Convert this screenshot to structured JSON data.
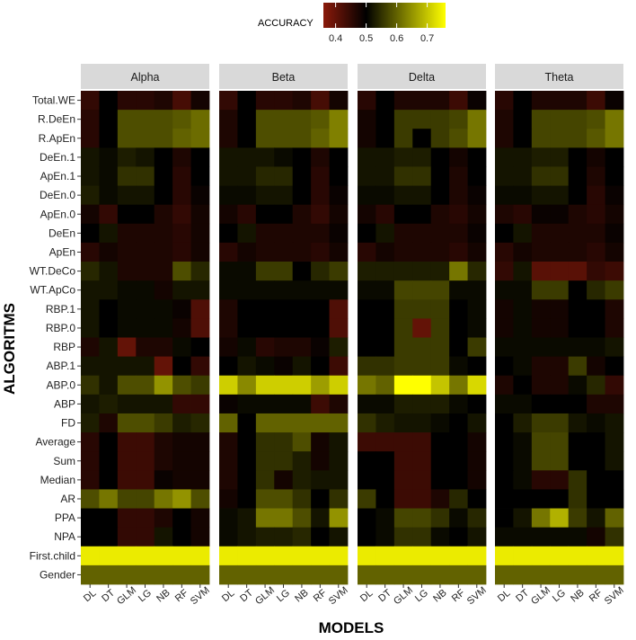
{
  "chart_data": {
    "type": "heatmap",
    "xlabel": "MODELS",
    "ylabel": "ALGORITMS",
    "legend": {
      "title": "ACCURACY",
      "placement": "top",
      "min": 0.36,
      "max": 0.76,
      "ticks": [
        "0.4",
        "0.5",
        "0.6",
        "0.7"
      ],
      "colors": [
        "#8b1a0a",
        "#000000",
        "#ffff00"
      ]
    },
    "panels": [
      "Alpha",
      "Beta",
      "Delta",
      "Theta"
    ],
    "models": [
      "DL",
      "DT",
      "GLM",
      "LG",
      "NB",
      "RF",
      "SVM"
    ],
    "features": [
      "Total.WE",
      "R.DeEn",
      "R.ApEn",
      "DeEn.1",
      "ApEn.1",
      "DeEn.0",
      "ApEn.0",
      "DeEn",
      "ApEn",
      "WT.DeCo",
      "WT.ApCo",
      "RBP.1",
      "RBP.0",
      "RBP",
      "ABP.1",
      "ABP.0",
      "ABP",
      "FD",
      "Average",
      "Sum",
      "Median",
      "AR",
      "PPA",
      "NPA",
      "First.child",
      "Gender"
    ],
    "values": {
      "Alpha": [
        [
          0.45,
          0.5,
          0.46,
          0.46,
          0.47,
          0.43,
          0.48
        ],
        [
          0.46,
          0.5,
          0.58,
          0.58,
          0.58,
          0.59,
          0.61
        ],
        [
          0.46,
          0.5,
          0.58,
          0.58,
          0.58,
          0.6,
          0.61
        ],
        [
          0.52,
          0.51,
          0.53,
          0.52,
          0.5,
          0.47,
          0.5
        ],
        [
          0.52,
          0.51,
          0.55,
          0.55,
          0.5,
          0.46,
          0.5
        ],
        [
          0.53,
          0.51,
          0.52,
          0.52,
          0.5,
          0.46,
          0.49
        ],
        [
          0.48,
          0.45,
          0.5,
          0.5,
          0.47,
          0.45,
          0.48
        ],
        [
          0.5,
          0.52,
          0.47,
          0.47,
          0.47,
          0.46,
          0.48
        ],
        [
          0.46,
          0.48,
          0.47,
          0.47,
          0.47,
          0.46,
          0.48
        ],
        [
          0.54,
          0.52,
          0.47,
          0.47,
          0.47,
          0.58,
          0.54
        ],
        [
          0.52,
          0.52,
          0.51,
          0.51,
          0.48,
          0.52,
          0.52
        ],
        [
          0.52,
          0.5,
          0.51,
          0.51,
          0.51,
          0.49,
          0.42
        ],
        [
          0.52,
          0.5,
          0.51,
          0.51,
          0.51,
          0.48,
          0.42
        ],
        [
          0.47,
          0.52,
          0.4,
          0.47,
          0.47,
          0.51,
          0.5
        ],
        [
          0.52,
          0.52,
          0.52,
          0.52,
          0.4,
          0.5,
          0.45
        ],
        [
          0.55,
          0.52,
          0.58,
          0.58,
          0.65,
          0.58,
          0.56
        ],
        [
          0.52,
          0.53,
          0.52,
          0.52,
          0.52,
          0.45,
          0.45
        ],
        [
          0.53,
          0.47,
          0.58,
          0.58,
          0.56,
          0.53,
          0.54
        ],
        [
          0.46,
          0.5,
          0.44,
          0.44,
          0.47,
          0.48,
          0.48
        ],
        [
          0.46,
          0.5,
          0.44,
          0.44,
          0.47,
          0.48,
          0.48
        ],
        [
          0.46,
          0.5,
          0.44,
          0.44,
          0.49,
          0.48,
          0.48
        ],
        [
          0.58,
          0.62,
          0.57,
          0.57,
          0.62,
          0.65,
          0.58
        ],
        [
          0.5,
          0.5,
          0.45,
          0.45,
          0.47,
          0.5,
          0.48
        ],
        [
          0.5,
          0.5,
          0.45,
          0.45,
          0.52,
          0.5,
          0.48
        ],
        [
          0.74,
          0.74,
          0.74,
          0.74,
          0.74,
          0.74,
          0.74
        ],
        [
          0.6,
          0.6,
          0.6,
          0.6,
          0.6,
          0.6,
          0.6
        ]
      ],
      "Beta": [
        [
          0.45,
          0.5,
          0.46,
          0.46,
          0.47,
          0.43,
          0.48
        ],
        [
          0.47,
          0.5,
          0.58,
          0.58,
          0.58,
          0.59,
          0.63
        ],
        [
          0.47,
          0.5,
          0.58,
          0.58,
          0.58,
          0.6,
          0.63
        ],
        [
          0.52,
          0.52,
          0.52,
          0.51,
          0.5,
          0.47,
          0.5
        ],
        [
          0.52,
          0.52,
          0.54,
          0.54,
          0.5,
          0.46,
          0.5
        ],
        [
          0.51,
          0.51,
          0.52,
          0.52,
          0.5,
          0.46,
          0.49
        ],
        [
          0.48,
          0.46,
          0.5,
          0.5,
          0.47,
          0.45,
          0.48
        ],
        [
          0.5,
          0.52,
          0.47,
          0.47,
          0.47,
          0.47,
          0.49
        ],
        [
          0.46,
          0.48,
          0.47,
          0.47,
          0.47,
          0.46,
          0.48
        ],
        [
          0.51,
          0.51,
          0.56,
          0.56,
          0.5,
          0.54,
          0.56
        ],
        [
          0.51,
          0.51,
          0.51,
          0.51,
          0.51,
          0.51,
          0.51
        ],
        [
          0.47,
          0.5,
          0.5,
          0.5,
          0.5,
          0.5,
          0.42
        ],
        [
          0.47,
          0.5,
          0.5,
          0.5,
          0.5,
          0.5,
          0.42
        ],
        [
          0.48,
          0.51,
          0.46,
          0.47,
          0.47,
          0.49,
          0.53
        ],
        [
          0.5,
          0.52,
          0.51,
          0.49,
          0.52,
          0.5,
          0.44
        ],
        [
          0.71,
          0.64,
          0.71,
          0.71,
          0.71,
          0.66,
          0.71
        ],
        [
          0.49,
          0.51,
          0.51,
          0.51,
          0.51,
          0.44,
          0.47
        ],
        [
          0.6,
          0.5,
          0.6,
          0.6,
          0.6,
          0.6,
          0.6
        ],
        [
          0.47,
          0.5,
          0.55,
          0.55,
          0.58,
          0.48,
          0.52
        ],
        [
          0.47,
          0.5,
          0.55,
          0.55,
          0.53,
          0.48,
          0.52
        ],
        [
          0.47,
          0.5,
          0.55,
          0.48,
          0.53,
          0.52,
          0.52
        ],
        [
          0.48,
          0.5,
          0.58,
          0.58,
          0.55,
          0.5,
          0.55
        ],
        [
          0.51,
          0.52,
          0.62,
          0.62,
          0.58,
          0.52,
          0.65
        ],
        [
          0.51,
          0.52,
          0.53,
          0.53,
          0.54,
          0.5,
          0.52
        ],
        [
          0.74,
          0.74,
          0.74,
          0.74,
          0.74,
          0.74,
          0.74
        ],
        [
          0.6,
          0.6,
          0.6,
          0.6,
          0.6,
          0.6,
          0.6
        ]
      ],
      "Delta": [
        [
          0.46,
          0.5,
          0.47,
          0.47,
          0.47,
          0.44,
          0.49
        ],
        [
          0.48,
          0.5,
          0.56,
          0.56,
          0.56,
          0.57,
          0.62
        ],
        [
          0.48,
          0.5,
          0.56,
          0.5,
          0.56,
          0.58,
          0.62
        ],
        [
          0.52,
          0.52,
          0.53,
          0.53,
          0.5,
          0.48,
          0.5
        ],
        [
          0.52,
          0.52,
          0.55,
          0.55,
          0.5,
          0.47,
          0.5
        ],
        [
          0.51,
          0.51,
          0.52,
          0.52,
          0.5,
          0.47,
          0.49
        ],
        [
          0.48,
          0.46,
          0.5,
          0.5,
          0.47,
          0.46,
          0.48
        ],
        [
          0.5,
          0.52,
          0.47,
          0.47,
          0.47,
          0.47,
          0.49
        ],
        [
          0.46,
          0.48,
          0.47,
          0.47,
          0.47,
          0.46,
          0.48
        ],
        [
          0.53,
          0.53,
          0.53,
          0.53,
          0.53,
          0.62,
          0.54
        ],
        [
          0.51,
          0.51,
          0.57,
          0.57,
          0.57,
          0.51,
          0.51
        ],
        [
          0.5,
          0.5,
          0.56,
          0.56,
          0.56,
          0.5,
          0.51
        ],
        [
          0.5,
          0.5,
          0.56,
          0.4,
          0.56,
          0.5,
          0.51
        ],
        [
          0.5,
          0.5,
          0.56,
          0.56,
          0.56,
          0.5,
          0.56
        ],
        [
          0.55,
          0.55,
          0.56,
          0.56,
          0.56,
          0.51,
          0.5
        ],
        [
          0.62,
          0.6,
          0.76,
          0.76,
          0.7,
          0.62,
          0.72
        ],
        [
          0.51,
          0.51,
          0.53,
          0.53,
          0.53,
          0.51,
          0.5
        ],
        [
          0.55,
          0.53,
          0.52,
          0.52,
          0.51,
          0.5,
          0.52
        ],
        [
          0.44,
          0.44,
          0.44,
          0.44,
          0.5,
          0.5,
          0.48
        ],
        [
          0.5,
          0.5,
          0.44,
          0.44,
          0.5,
          0.5,
          0.48
        ],
        [
          0.5,
          0.5,
          0.44,
          0.44,
          0.5,
          0.5,
          0.48
        ],
        [
          0.56,
          0.5,
          0.44,
          0.44,
          0.47,
          0.54,
          0.5
        ],
        [
          0.5,
          0.51,
          0.57,
          0.57,
          0.55,
          0.51,
          0.54
        ],
        [
          0.5,
          0.51,
          0.55,
          0.55,
          0.51,
          0.5,
          0.52
        ],
        [
          0.74,
          0.74,
          0.74,
          0.74,
          0.74,
          0.74,
          0.74
        ],
        [
          0.6,
          0.6,
          0.6,
          0.6,
          0.6,
          0.6,
          0.6
        ]
      ],
      "Theta": [
        [
          0.46,
          0.5,
          0.47,
          0.47,
          0.47,
          0.44,
          0.49
        ],
        [
          0.47,
          0.5,
          0.57,
          0.57,
          0.57,
          0.58,
          0.62
        ],
        [
          0.47,
          0.5,
          0.57,
          0.57,
          0.57,
          0.59,
          0.62
        ],
        [
          0.52,
          0.52,
          0.53,
          0.53,
          0.5,
          0.48,
          0.5
        ],
        [
          0.52,
          0.52,
          0.55,
          0.55,
          0.5,
          0.47,
          0.5
        ],
        [
          0.51,
          0.51,
          0.52,
          0.52,
          0.5,
          0.46,
          0.49
        ],
        [
          0.47,
          0.46,
          0.49,
          0.49,
          0.47,
          0.46,
          0.48
        ],
        [
          0.5,
          0.52,
          0.47,
          0.47,
          0.47,
          0.47,
          0.49
        ],
        [
          0.46,
          0.48,
          0.47,
          0.47,
          0.47,
          0.46,
          0.48
        ],
        [
          0.45,
          0.52,
          0.41,
          0.41,
          0.41,
          0.45,
          0.44
        ],
        [
          0.51,
          0.51,
          0.56,
          0.56,
          0.5,
          0.54,
          0.56
        ],
        [
          0.48,
          0.51,
          0.48,
          0.48,
          0.5,
          0.5,
          0.47
        ],
        [
          0.48,
          0.51,
          0.48,
          0.48,
          0.5,
          0.5,
          0.47
        ],
        [
          0.51,
          0.51,
          0.51,
          0.51,
          0.51,
          0.51,
          0.52
        ],
        [
          0.5,
          0.51,
          0.47,
          0.47,
          0.56,
          0.48,
          0.5
        ],
        [
          0.47,
          0.5,
          0.47,
          0.47,
          0.51,
          0.54,
          0.45
        ],
        [
          0.51,
          0.51,
          0.5,
          0.5,
          0.5,
          0.47,
          0.47
        ],
        [
          0.5,
          0.53,
          0.56,
          0.56,
          0.52,
          0.51,
          0.52
        ],
        [
          0.5,
          0.51,
          0.57,
          0.57,
          0.5,
          0.5,
          0.52
        ],
        [
          0.5,
          0.51,
          0.57,
          0.57,
          0.5,
          0.5,
          0.52
        ],
        [
          0.5,
          0.51,
          0.46,
          0.46,
          0.55,
          0.5,
          0.5
        ],
        [
          0.5,
          0.5,
          0.5,
          0.5,
          0.55,
          0.5,
          0.5
        ],
        [
          0.5,
          0.52,
          0.62,
          0.68,
          0.56,
          0.52,
          0.6
        ],
        [
          0.51,
          0.51,
          0.51,
          0.51,
          0.51,
          0.48,
          0.55
        ],
        [
          0.74,
          0.74,
          0.74,
          0.74,
          0.74,
          0.74,
          0.74
        ],
        [
          0.6,
          0.6,
          0.6,
          0.6,
          0.6,
          0.6,
          0.6
        ]
      ]
    }
  }
}
